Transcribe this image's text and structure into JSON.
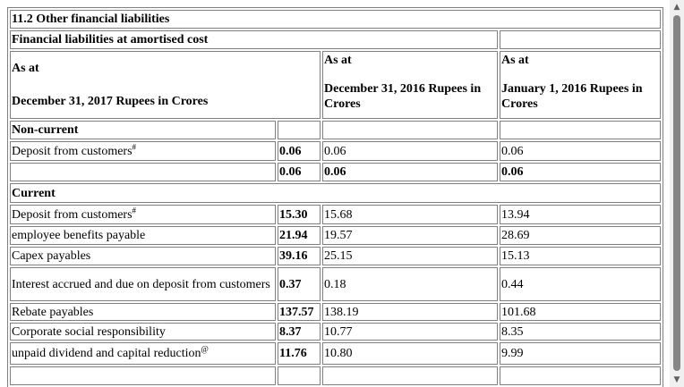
{
  "title": "11.2 Other financial liabilities",
  "subtitle": "Financial liabilities at amortised cost",
  "columns": {
    "col1": {
      "line1": "As at",
      "line2": "December 31, 2017 Rupees in Crores"
    },
    "col2": {
      "line1": "As at",
      "line2": "December 31, 2016 Rupees in Crores"
    },
    "col3": {
      "line1": "As at",
      "line2": "January 1, 2016 Rupees in Crores"
    }
  },
  "sections": {
    "noncurrent_label": "Non-current",
    "current_label": "Current"
  },
  "noncurrent_rows": [
    {
      "label": "Deposit from customers",
      "mark": "#",
      "v2017": "0.06",
      "v2016": "0.06",
      "v2016jan": "0.06"
    }
  ],
  "noncurrent_total": {
    "v2017": "0.06",
    "v2016": "0.06",
    "v2016jan": "0.06"
  },
  "current_rows": [
    {
      "label": "Deposit from customers",
      "mark": "#",
      "v2017": "15.30",
      "v2016": "15.68",
      "v2016jan": "13.94"
    },
    {
      "label": "employee benefits payable",
      "mark": "",
      "v2017": "21.94",
      "v2016": "19.57",
      "v2016jan": "28.69"
    },
    {
      "label": "Capex payables",
      "mark": "",
      "v2017": "39.16",
      "v2016": "25.15",
      "v2016jan": "15.13"
    },
    {
      "label": "Interest accrued and due on deposit from customers",
      "mark": "",
      "v2017": "0.37",
      "v2016": "0.18",
      "v2016jan": "0.44"
    },
    {
      "label": "Rebate payables",
      "mark": "",
      "v2017": "137.57",
      "v2016": "138.19",
      "v2016jan": "101.68"
    },
    {
      "label": "Corporate social responsibility",
      "mark": "",
      "v2017": "8.37",
      "v2016": "10.77",
      "v2016jan": "8.35"
    },
    {
      "label": "unpaid dividend and capital reduction",
      "mark": "@",
      "v2017": "11.76",
      "v2016": "10.80",
      "v2016jan": "9.99"
    }
  ],
  "scrollbar": {
    "up_icon": "triangle-up-icon",
    "down_icon": "triangle-down-icon"
  }
}
